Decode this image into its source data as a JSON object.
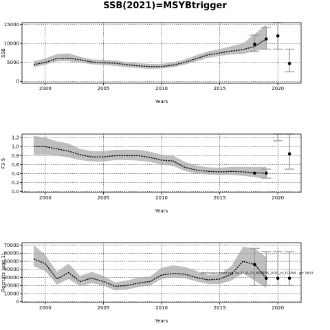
{
  "page": {
    "title": "SSB(2021)=MSYBtrigger"
  },
  "chart_data": [
    {
      "type": "line",
      "xlabel": "Years",
      "ylabel": "SSB",
      "xlim": [
        1998,
        2022
      ],
      "ylim": [
        -500,
        15500
      ],
      "x_ticks": [
        2000,
        2005,
        2010,
        2015,
        2020
      ],
      "y_ticks": [
        0,
        5000,
        10000,
        15000
      ],
      "y_tick_labels": [
        "0",
        "5000",
        "10000",
        "15000"
      ],
      "grid": true,
      "years": [
        1999,
        2000,
        2001,
        2002,
        2003,
        2004,
        2005,
        2006,
        2007,
        2008,
        2009,
        2010,
        2011,
        2012,
        2013,
        2014,
        2015,
        2016,
        2017,
        2018,
        2019
      ],
      "median": [
        4400,
        5000,
        6000,
        6100,
        5700,
        5100,
        4900,
        4800,
        4400,
        4100,
        3900,
        3900,
        4300,
        5000,
        6000,
        7000,
        7500,
        8000,
        8400,
        9200,
        11200
      ],
      "band_low": [
        3700,
        4400,
        5300,
        5300,
        4900,
        4500,
        4300,
        4100,
        3700,
        3500,
        3300,
        3400,
        3700,
        4400,
        5300,
        6200,
        6700,
        7100,
        7200,
        8000,
        8500
      ],
      "band_high": [
        5300,
        6000,
        7200,
        7400,
        6500,
        5800,
        5700,
        5500,
        5100,
        4800,
        4600,
        4600,
        5000,
        5800,
        6900,
        7900,
        8500,
        9300,
        10000,
        12500,
        15000
      ],
      "points": [
        {
          "x": 2018,
          "y": 9800
        },
        {
          "x": 2019,
          "y": 11200
        },
        {
          "x": 2020,
          "y": 12000
        },
        {
          "x": 2021,
          "y": 4700
        }
      ],
      "error_bars": [
        {
          "x": 2018,
          "low": 7800,
          "high": 12200
        },
        {
          "x": 2019,
          "low": 8500,
          "high": 14300
        },
        {
          "x": 2020,
          "low": 8500,
          "high": 15500
        },
        {
          "x": 2021,
          "low": 2500,
          "high": 8500
        }
      ]
    },
    {
      "type": "line",
      "xlabel": "Years",
      "ylabel": "F3-5",
      "xlim": [
        1998,
        2022
      ],
      "ylim": [
        -0.02,
        1.28
      ],
      "x_ticks": [
        2000,
        2005,
        2010,
        2015,
        2020
      ],
      "y_ticks": [
        0.0,
        0.2,
        0.4,
        0.6,
        0.8,
        1.0,
        1.2
      ],
      "y_tick_labels": [
        "0.0",
        "0.2",
        "0.4",
        "0.6",
        "0.8",
        "1.0",
        "1.2"
      ],
      "grid": true,
      "years": [
        1999,
        2000,
        2001,
        2002,
        2003,
        2004,
        2005,
        2006,
        2007,
        2008,
        2009,
        2010,
        2011,
        2012,
        2013,
        2014,
        2015,
        2016,
        2017,
        2018,
        2019
      ],
      "median": [
        1.01,
        1.0,
        0.95,
        0.9,
        0.82,
        0.77,
        0.77,
        0.8,
        0.8,
        0.8,
        0.76,
        0.7,
        0.68,
        0.54,
        0.48,
        0.45,
        0.44,
        0.45,
        0.44,
        0.42,
        0.41
      ],
      "band_low": [
        0.82,
        0.82,
        0.8,
        0.76,
        0.7,
        0.67,
        0.67,
        0.7,
        0.7,
        0.69,
        0.66,
        0.6,
        0.57,
        0.46,
        0.4,
        0.38,
        0.37,
        0.37,
        0.35,
        0.32,
        0.28
      ],
      "band_high": [
        1.24,
        1.2,
        1.12,
        1.07,
        0.95,
        0.9,
        0.9,
        0.93,
        0.93,
        0.93,
        0.89,
        0.82,
        0.8,
        0.66,
        0.58,
        0.54,
        0.53,
        0.55,
        0.55,
        0.55,
        0.55
      ],
      "points": [
        {
          "x": 2018,
          "y": 0.41
        },
        {
          "x": 2019,
          "y": 0.41
        },
        {
          "x": 2021,
          "y": 0.84
        }
      ],
      "error_bars": [
        {
          "x": 2019,
          "low": 0.3,
          "high": 0.5
        },
        {
          "x": 2020,
          "low": 1.13,
          "high": 1.4
        },
        {
          "x": 2021,
          "low": 0.5,
          "high": 1.28
        }
      ]
    },
    {
      "type": "line",
      "xlabel": "Years",
      "ylabel": "Recruits (age 1)",
      "xlim": [
        1998,
        2022
      ],
      "ylim": [
        -1000,
        73000
      ],
      "x_ticks": [
        2000,
        2005,
        2010,
        2015,
        2020
      ],
      "y_ticks": [
        0,
        10000,
        20000,
        30000,
        40000,
        50000,
        60000,
        70000
      ],
      "y_tick_labels": [
        "0",
        "10000",
        "20000",
        "30000",
        "40000",
        "50000",
        "60000",
        "70000"
      ],
      "grid": true,
      "years": [
        1999,
        2000,
        2001,
        2002,
        2003,
        2004,
        2005,
        2006,
        2007,
        2008,
        2009,
        2010,
        2011,
        2012,
        2013,
        2014,
        2015,
        2016,
        2017,
        2018,
        2019
      ],
      "median": [
        53000,
        47000,
        28000,
        36000,
        25000,
        29000,
        25000,
        19000,
        20000,
        23000,
        25000,
        33000,
        35000,
        34000,
        30000,
        27000,
        28000,
        34000,
        50000,
        46000,
        29000
      ],
      "band_low": [
        44000,
        38000,
        21000,
        28000,
        19000,
        23000,
        20000,
        14000,
        15000,
        18000,
        20000,
        28000,
        30000,
        29000,
        25000,
        22000,
        22000,
        26000,
        35000,
        26000,
        17000
      ],
      "band_high": [
        70000,
        58000,
        37000,
        47000,
        32000,
        37000,
        32000,
        24000,
        26000,
        30000,
        31000,
        42000,
        45000,
        43000,
        38000,
        33000,
        34000,
        44000,
        68000,
        66000,
        55000
      ],
      "points": [
        {
          "x": 2018,
          "y": 46000
        },
        {
          "x": 2019,
          "y": 29000
        },
        {
          "x": 2020,
          "y": 29000
        },
        {
          "x": 2021,
          "y": 29000
        }
      ],
      "error_bars": [
        {
          "x": 2018,
          "low": 20000,
          "high": 66000
        },
        {
          "x": 2019,
          "low": 20000,
          "high": 62000
        },
        {
          "x": 2020,
          "low": 20000,
          "high": 62000
        },
        {
          "x": 2021,
          "low": 20000,
          "high": 62000
        }
      ],
      "annotation": "stockassessment.org, (le.27.21-23_WGBFAS_2020_v3_f12494 , git: 5b33"
    }
  ]
}
